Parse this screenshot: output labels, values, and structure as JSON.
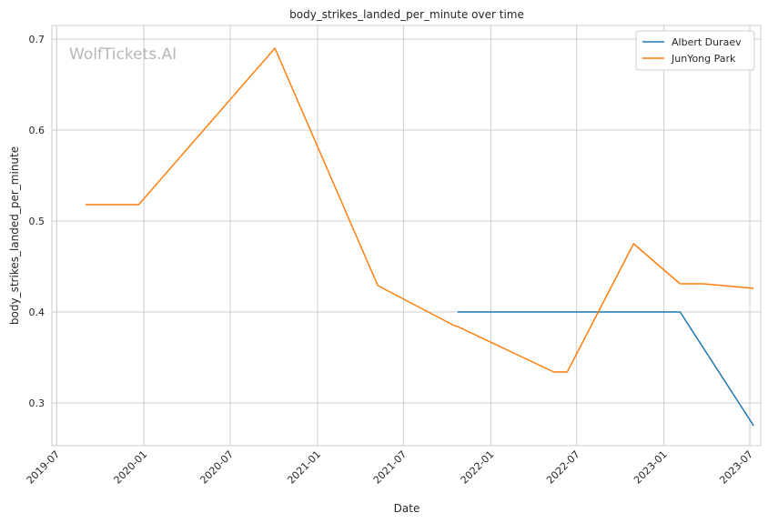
{
  "chart_data": {
    "type": "line",
    "title": "body_strikes_landed_per_minute over time",
    "xlabel": "Date",
    "ylabel": "body_strikes_landed_per_minute",
    "watermark": "WolfTickets.AI",
    "x_ticks": [
      "2019-07",
      "2020-01",
      "2020-07",
      "2021-01",
      "2021-07",
      "2022-01",
      "2022-07",
      "2023-01",
      "2023-07"
    ],
    "y_ticks": [
      "0.3",
      "0.4",
      "0.5",
      "0.6",
      "0.7"
    ],
    "xlim": [
      "2019-06-21",
      "2023-07-24"
    ],
    "ylim": [
      0.253,
      0.715
    ],
    "grid": true,
    "legend_position": "top-right",
    "series": [
      {
        "name": "Albert Duraev",
        "color": "#1f77b4",
        "points": [
          {
            "x": "2021-10-23",
            "y": 0.4
          },
          {
            "x": "2023-02-04",
            "y": 0.4
          },
          {
            "x": "2023-07-09",
            "y": 0.275
          }
        ]
      },
      {
        "name": "JunYong Park",
        "color": "#ff7f0e",
        "points": [
          {
            "x": "2019-08-31",
            "y": 0.518
          },
          {
            "x": "2019-12-21",
            "y": 0.518
          },
          {
            "x": "2020-10-03",
            "y": 0.69
          },
          {
            "x": "2021-05-08",
            "y": 0.429
          },
          {
            "x": "2021-10-16",
            "y": 0.385
          },
          {
            "x": "2021-10-23",
            "y": 0.384
          },
          {
            "x": "2022-05-14",
            "y": 0.334
          },
          {
            "x": "2022-06-11",
            "y": 0.334
          },
          {
            "x": "2022-10-29",
            "y": 0.475
          },
          {
            "x": "2023-02-04",
            "y": 0.431
          },
          {
            "x": "2023-03-25",
            "y": 0.431
          },
          {
            "x": "2023-07-09",
            "y": 0.426
          }
        ]
      }
    ]
  }
}
